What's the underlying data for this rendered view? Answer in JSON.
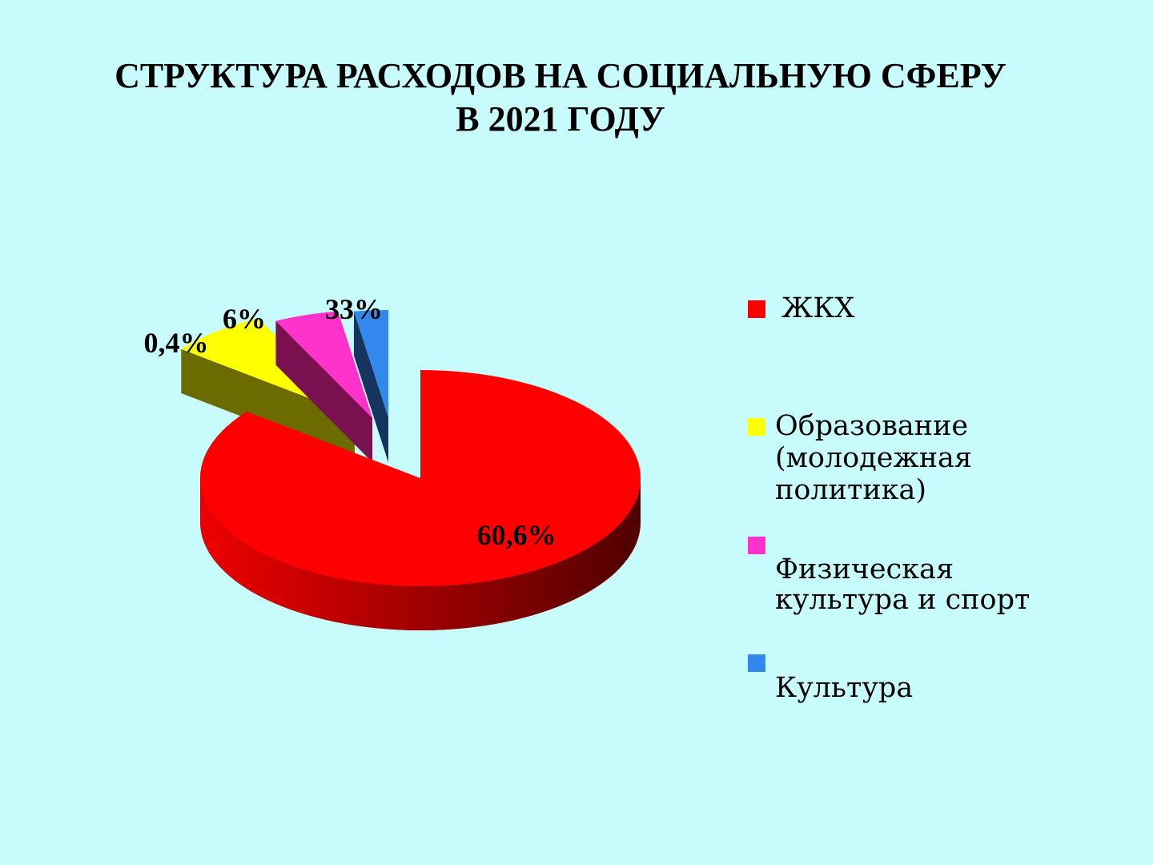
{
  "chart_data": {
    "type": "pie",
    "title": [
      "СТРУКТУРА РАСХОДОВ НА СОЦИАЛЬНУЮ СФЕРУ",
      "В 2021 ГОДУ"
    ],
    "legend_position": "right",
    "categories": [
      "ЖКХ",
      "Образование (молодежная политика)",
      "Физическая культура и спорт",
      "Культура"
    ],
    "data_labels": [
      "60,6%",
      "0,4%",
      "6%",
      "33%"
    ],
    "values": [
      60.6,
      0.4,
      6,
      33
    ],
    "colors": [
      "#ff0000",
      "#ffff00",
      "#ff33cc",
      "#3388ee"
    ],
    "exploded": [
      false,
      true,
      true,
      true
    ],
    "style": "3d"
  }
}
